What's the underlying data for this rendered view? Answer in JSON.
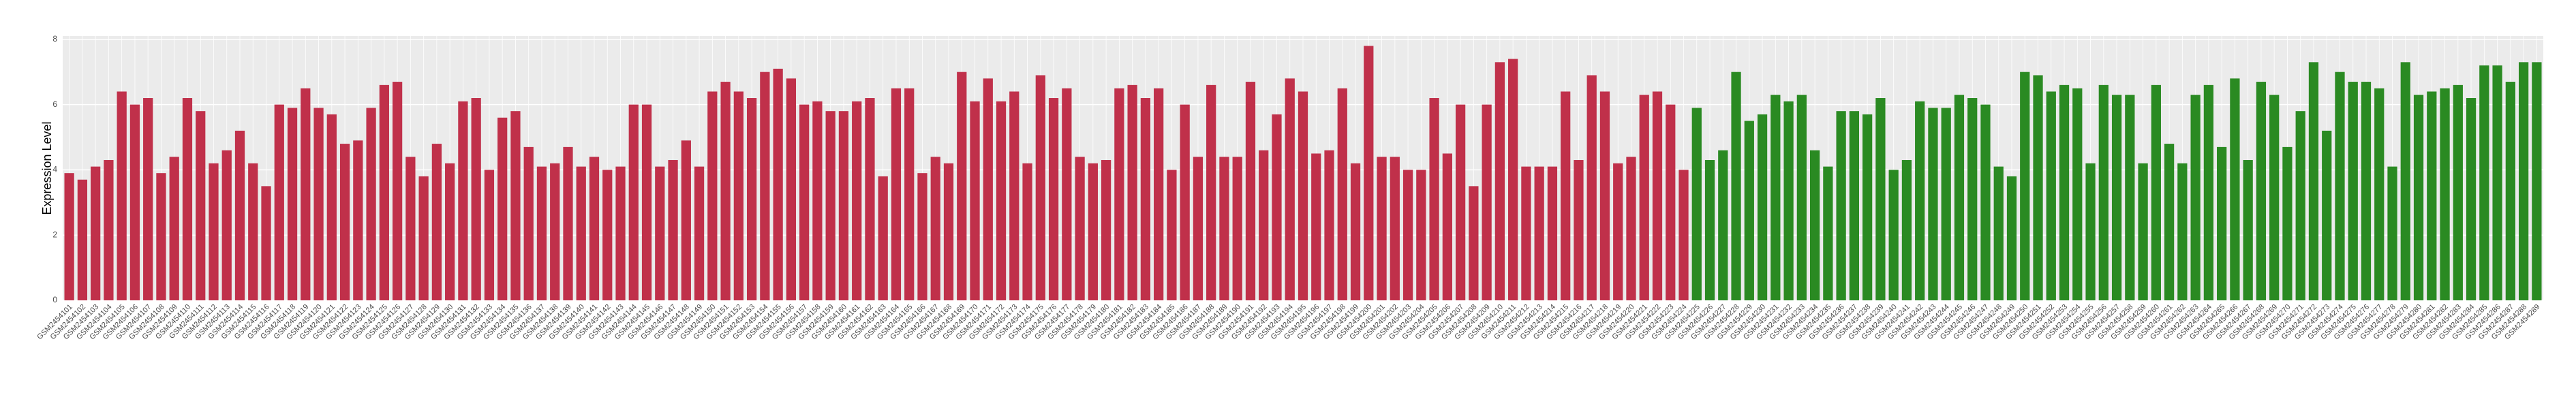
{
  "chart_data": {
    "type": "bar",
    "y_label": "Expression Level",
    "ylim": [
      0,
      8.1
    ],
    "yticks": [
      0,
      2,
      4,
      6,
      8
    ],
    "grid": true,
    "groups": [
      {
        "color": "#c0304a",
        "categories": [
          "GSM2454101",
          "GSM2454102",
          "GSM2454103",
          "GSM2454104",
          "GSM2454105",
          "GSM2454106",
          "GSM2454107",
          "GSM2454108",
          "GSM2454109",
          "GSM2454110",
          "GSM2454111",
          "GSM2454112",
          "GSM2454113",
          "GSM2454114",
          "GSM2454115",
          "GSM2454116",
          "GSM2454117",
          "GSM2454118",
          "GSM2454119",
          "GSM2454120",
          "GSM2454121",
          "GSM2454122",
          "GSM2454123",
          "GSM2454124",
          "GSM2454125",
          "GSM2454126",
          "GSM2454127",
          "GSM2454128",
          "GSM2454129",
          "GSM2454130",
          "GSM2454131",
          "GSM2454132",
          "GSM2454133",
          "GSM2454134",
          "GSM2454135",
          "GSM2454136",
          "GSM2454137",
          "GSM2454138",
          "GSM2454139",
          "GSM2454140",
          "GSM2454141",
          "GSM2454142",
          "GSM2454143",
          "GSM2454144",
          "GSM2454145",
          "GSM2454146",
          "GSM2454147",
          "GSM2454148",
          "GSM2454149",
          "GSM2454150",
          "GSM2454151",
          "GSM2454152",
          "GSM2454153",
          "GSM2454154",
          "GSM2454155",
          "GSM2454156",
          "GSM2454157",
          "GSM2454158",
          "GSM2454159",
          "GSM2454160",
          "GSM2454161",
          "GSM2454162",
          "GSM2454163",
          "GSM2454164",
          "GSM2454165",
          "GSM2454166",
          "GSM2454167",
          "GSM2454168",
          "GSM2454169",
          "GSM2454170",
          "GSM2454171",
          "GSM2454172",
          "GSM2454173",
          "GSM2454174",
          "GSM2454175",
          "GSM2454176",
          "GSM2454177",
          "GSM2454178",
          "GSM2454179",
          "GSM2454180",
          "GSM2454181",
          "GSM2454182",
          "GSM2454183",
          "GSM2454184",
          "GSM2454185",
          "GSM2454186",
          "GSM2454187",
          "GSM2454188",
          "GSM2454189",
          "GSM2454190",
          "GSM2454191",
          "GSM2454192",
          "GSM2454193",
          "GSM2454194",
          "GSM2454195",
          "GSM2454196",
          "GSM2454197",
          "GSM2454198",
          "GSM2454199",
          "GSM2454200",
          "GSM2454201",
          "GSM2454202",
          "GSM2454203",
          "GSM2454204",
          "GSM2454205",
          "GSM2454206",
          "GSM2454207",
          "GSM2454208",
          "GSM2454209",
          "GSM2454210",
          "GSM2454211",
          "GSM2454212",
          "GSM2454213",
          "GSM2454214",
          "GSM2454215",
          "GSM2454216",
          "GSM2454217",
          "GSM2454218",
          "GSM2454219",
          "GSM2454220",
          "GSM2454221",
          "GSM2454222",
          "GSM2454223",
          "GSM2454224"
        ],
        "values": [
          3.9,
          3.7,
          4.1,
          4.3,
          6.4,
          6.0,
          6.2,
          3.9,
          4.4,
          6.2,
          5.8,
          4.2,
          4.6,
          5.2,
          4.2,
          3.5,
          6.0,
          5.9,
          6.5,
          5.9,
          5.7,
          4.8,
          4.9,
          5.9,
          6.6,
          6.7,
          4.4,
          3.8,
          4.8,
          4.2,
          6.1,
          6.2,
          4.0,
          5.6,
          5.8,
          4.7,
          4.1,
          4.2,
          4.7,
          4.1,
          4.4,
          4.0,
          4.1,
          6.0,
          6.0,
          4.1,
          4.3,
          4.9,
          4.1,
          6.4,
          6.7,
          6.4,
          6.2,
          7.0,
          7.1,
          6.8,
          6.0,
          6.1,
          5.8,
          5.8,
          6.1,
          6.2,
          3.8,
          6.5,
          6.5,
          3.9,
          4.4,
          4.2,
          7.0,
          6.1,
          6.8,
          6.1,
          6.4,
          4.2,
          6.9,
          6.2,
          6.5,
          4.4,
          4.2,
          4.3,
          6.5,
          6.6,
          6.2,
          6.5,
          4.0,
          6.0,
          4.4,
          6.6,
          4.4,
          4.4,
          6.7,
          4.6,
          5.7,
          6.8,
          6.4,
          4.5,
          4.6,
          6.5,
          4.2,
          7.8,
          4.4,
          4.4,
          4.0,
          4.0,
          6.2,
          4.5,
          6.0,
          3.5,
          6.0,
          7.3,
          7.4,
          4.1,
          4.1,
          4.1,
          6.4,
          4.3,
          6.9,
          6.4,
          4.2,
          4.4,
          6.3,
          6.4,
          6.0,
          4.0
        ]
      },
      {
        "color": "#2a8a22",
        "categories": [
          "GSM2454225",
          "GSM2454226",
          "GSM2454227",
          "GSM2454228",
          "GSM2454229",
          "GSM2454230",
          "GSM2454231",
          "GSM2454232",
          "GSM2454233",
          "GSM2454234",
          "GSM2454235",
          "GSM2454236",
          "GSM2454237",
          "GSM2454238",
          "GSM2454239",
          "GSM2454240",
          "GSM2454241",
          "GSM2454242",
          "GSM2454243",
          "GSM2454244",
          "GSM2454245",
          "GSM2454246",
          "GSM2454247",
          "GSM2454248",
          "GSM2454249",
          "GSM2454250",
          "GSM2454251",
          "GSM2454252",
          "GSM2454253",
          "GSM2454254",
          "GSM2454255",
          "GSM2454256",
          "GSM2454257",
          "GSM2454258",
          "GSM2454259",
          "GSM2454260",
          "GSM2454261",
          "GSM2454262",
          "GSM2454263",
          "GSM2454264",
          "GSM2454265",
          "GSM2454266",
          "GSM2454267",
          "GSM2454268",
          "GSM2454269",
          "GSM2454270",
          "GSM2454271",
          "GSM2454272",
          "GSM2454273",
          "GSM2454274",
          "GSM2454275",
          "GSM2454276",
          "GSM2454277",
          "GSM2454278",
          "GSM2454279",
          "GSM2454280",
          "GSM2454281",
          "GSM2454282",
          "GSM2454283",
          "GSM2454284",
          "GSM2454285",
          "GSM2454286",
          "GSM2454287",
          "GSM2454288",
          "GSM2454289"
        ],
        "values": [
          5.9,
          4.3,
          4.6,
          7.0,
          5.5,
          5.7,
          6.3,
          6.1,
          6.3,
          4.6,
          4.1,
          5.8,
          5.8,
          5.7,
          6.2,
          4.0,
          4.3,
          6.1,
          5.9,
          5.9,
          6.3,
          6.2,
          6.0,
          4.1,
          3.8,
          7.0,
          6.9,
          6.4,
          6.6,
          6.5,
          4.2,
          6.6,
          6.3,
          6.3,
          4.2,
          6.6,
          4.8,
          4.2,
          6.3,
          6.6,
          4.7,
          6.8,
          4.3,
          6.7,
          6.3,
          4.7,
          5.8,
          7.3,
          5.2,
          7.0,
          6.7,
          6.7,
          6.5,
          4.1,
          7.3,
          6.3,
          6.4,
          6.5,
          6.6,
          6.2,
          7.2,
          7.2,
          6.7,
          7.3,
          7.3
        ]
      }
    ]
  }
}
